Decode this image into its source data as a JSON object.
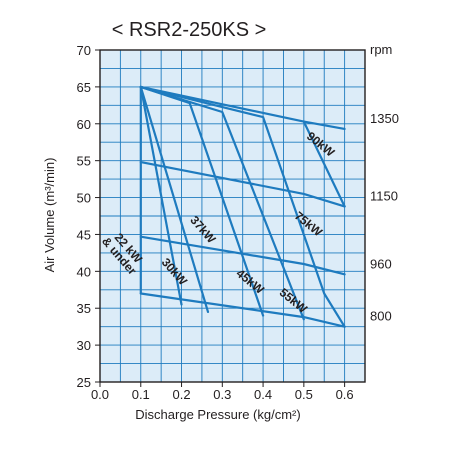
{
  "chart_data": {
    "type": "line",
    "title": "< RSR2-250KS >",
    "xlabel": "Discharge Pressure (kg/cm²)",
    "ylabel": "Air Volume (m³/min)",
    "right_axis_label": "rpm",
    "xlim": [
      0.0,
      0.65
    ],
    "ylim": [
      25,
      70
    ],
    "x_ticks": [
      "0.0",
      "0.1",
      "0.2",
      "0.3",
      "0.4",
      "0.5",
      "0.6"
    ],
    "y_ticks": [
      "25",
      "30",
      "35",
      "40",
      "45",
      "50",
      "55",
      "60",
      "65",
      "70"
    ],
    "grid": true,
    "grid_minor_x": 0.05,
    "grid_minor_y": 2.5,
    "line_color": "#1e7bbf",
    "grid_color": "#1e7bbf",
    "background_color": "#dcecf8",
    "rpm_curves": [
      {
        "label": "1350",
        "x": [
          0.1,
          0.5,
          0.6
        ],
        "y": [
          65.0,
          60.3,
          59.3
        ]
      },
      {
        "label": "1150",
        "x": [
          0.1,
          0.5,
          0.6
        ],
        "y": [
          54.8,
          50.5,
          48.8
        ]
      },
      {
        "label": "960",
        "x": [
          0.1,
          0.5,
          0.6
        ],
        "y": [
          44.7,
          41.0,
          39.6
        ]
      },
      {
        "label": "800",
        "x": [
          0.1,
          0.5,
          0.6
        ],
        "y": [
          37.0,
          33.8,
          32.5
        ]
      }
    ],
    "power_curves": [
      {
        "label": "22 kW\n& under",
        "x": [
          0.1,
          0.1
        ],
        "y": [
          65.0,
          37.0
        ]
      },
      {
        "label": "30kW",
        "x": [
          0.1,
          0.2
        ],
        "y": [
          65.0,
          35.5
        ]
      },
      {
        "label": "37kW",
        "x": [
          0.1,
          0.265
        ],
        "y": [
          65.0,
          34.5
        ]
      },
      {
        "label": "45kW",
        "x": [
          0.1,
          0.22,
          0.4
        ],
        "y": [
          65.0,
          62.8,
          34.0
        ]
      },
      {
        "label": "55kW",
        "x": [
          0.1,
          0.3,
          0.5
        ],
        "y": [
          65.0,
          61.6,
          33.5
        ]
      },
      {
        "label": "75kW",
        "x": [
          0.1,
          0.4,
          0.55,
          0.6
        ],
        "y": [
          65.0,
          60.9,
          37.0,
          32.5
        ]
      },
      {
        "label": "90kW",
        "x": [
          0.5,
          0.6
        ],
        "y": [
          60.3,
          48.8
        ]
      }
    ]
  }
}
